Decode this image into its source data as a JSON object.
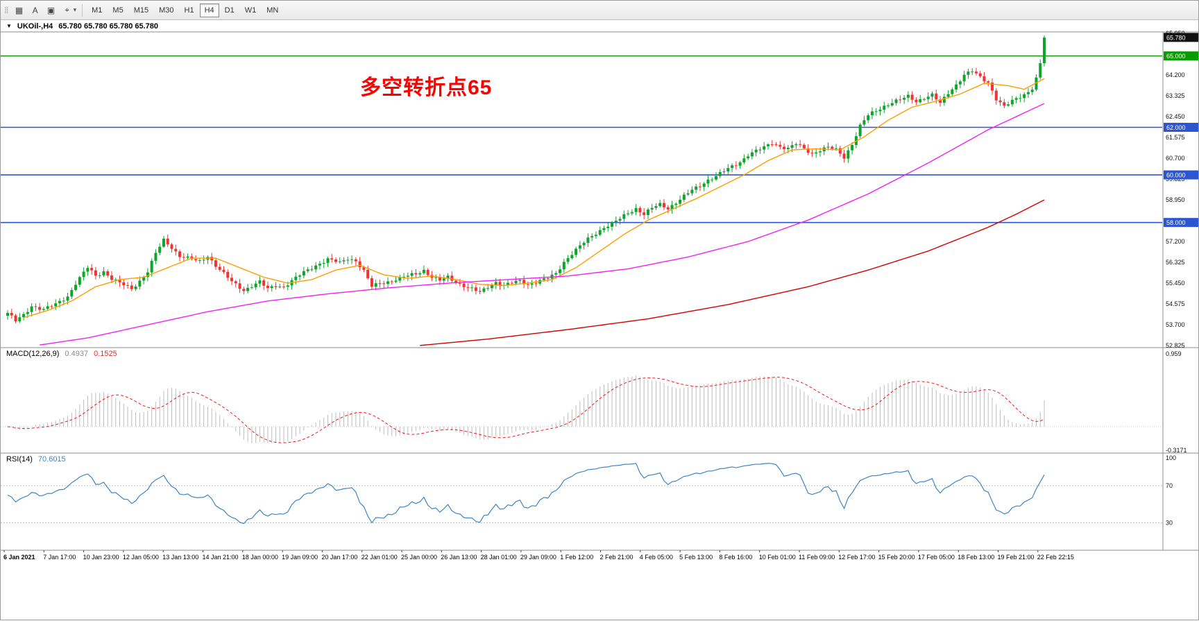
{
  "toolbar": {
    "icons": [
      {
        "name": "toolbar-drag-handle-icon",
        "glyph": "⣿"
      },
      {
        "name": "charts-grid-icon",
        "glyph": "▦"
      },
      {
        "name": "text-tool-icon",
        "glyph": "A"
      },
      {
        "name": "template-icon",
        "glyph": "▣"
      },
      {
        "name": "crosshair-tool-icon",
        "glyph": "⌖"
      },
      {
        "name": "dropdown-chevron-icon",
        "glyph": "▾"
      }
    ],
    "timeframes": [
      {
        "label": "M1",
        "active": false
      },
      {
        "label": "M5",
        "active": false
      },
      {
        "label": "M15",
        "active": false
      },
      {
        "label": "M30",
        "active": false
      },
      {
        "label": "H1",
        "active": false
      },
      {
        "label": "H4",
        "active": true
      },
      {
        "label": "D1",
        "active": false
      },
      {
        "label": "W1",
        "active": false
      },
      {
        "label": "MN",
        "active": false
      }
    ]
  },
  "chart_header": {
    "dropdown_glyph": "▼",
    "symbol": "UKOil-,H4",
    "ohlc": "65.780 65.780 65.780 65.780"
  },
  "annotation": {
    "text": "多空转折点65",
    "color": "#ff0000"
  },
  "macd": {
    "label": "MACD(12,26,9)",
    "main_value": "0.4937",
    "signal_value": "0.1525",
    "fast_period": 12,
    "slow_period": 26,
    "signal_period": 9,
    "scale_top": "0.959",
    "scale_bottom": "-0.3171",
    "histogram_color": "#bdbdbd",
    "signal_color": "#ff1414"
  },
  "rsi": {
    "label": "RSI(14)",
    "value": "70.6015",
    "period": 14,
    "levels": [
      "100",
      "70",
      "30"
    ],
    "level_values": [
      100,
      70,
      30
    ],
    "dotted_levels": [
      70,
      30
    ],
    "line_color": "#3d85c6"
  },
  "chart_data": {
    "type": "candlestick",
    "symbol": "UKOil-",
    "timeframe": "H4",
    "title": "UKOil-,H4 65.780 65.780 65.780 65.780",
    "current_price": "65.780",
    "bars_total": 260,
    "colors": {
      "up": "#0fa52c",
      "down": "#ef3434"
    },
    "y_axis": {
      "min": 52.74,
      "max": 66.01,
      "labels": [
        "65.950",
        "64.200",
        "63.325",
        "62.450",
        "61.575",
        "60.700",
        "59.825",
        "58.950",
        "57.200",
        "56.325",
        "55.450",
        "54.575",
        "53.700",
        "52.825"
      ]
    },
    "x_axis_labels": [
      "6 Jan 2021",
      "7 Jan 17:00",
      "10 Jan 23:00",
      "12 Jan 05:00",
      "13 Jan 13:00",
      "14 Jan 21:00",
      "18 Jan 00:00",
      "19 Jan 09:00",
      "20 Jan 17:00",
      "22 Jan 01:00",
      "25 Jan 00:00",
      "26 Jan 13:00",
      "28 Jan 01:00",
      "29 Jan 09:00",
      "1 Feb 12:00",
      "2 Feb 21:00",
      "4 Feb 05:00",
      "5 Feb 13:00",
      "8 Feb 16:00",
      "10 Feb 01:00",
      "11 Feb 09:00",
      "12 Feb 17:00",
      "15 Feb 20:00",
      "17 Feb 05:00",
      "18 Feb 13:00",
      "19 Feb 21:00",
      "22 Feb 22:15"
    ],
    "price_levels": [
      {
        "label": "65.000",
        "price": 65.0,
        "color": "#089b00",
        "type": "hline"
      },
      {
        "label": "62.000",
        "price": 62.0,
        "color": "#2d55cf",
        "type": "hline"
      },
      {
        "label": "60.000",
        "price": 60.0,
        "color": "#2d55cf",
        "type": "hline"
      },
      {
        "label": "58.000",
        "price": 58.0,
        "color": "#2d55cf",
        "type": "hline"
      }
    ],
    "price_waypoints": [
      [
        0,
        54.2
      ],
      [
        2,
        53.85
      ],
      [
        4,
        54.1
      ],
      [
        6,
        54.5
      ],
      [
        9,
        54.35
      ],
      [
        12,
        54.55
      ],
      [
        15,
        54.9
      ],
      [
        17,
        55.45
      ],
      [
        20,
        56.1
      ],
      [
        22,
        55.75
      ],
      [
        24,
        55.95
      ],
      [
        26,
        55.65
      ],
      [
        28,
        55.45
      ],
      [
        31,
        55.2
      ],
      [
        33,
        55.55
      ],
      [
        35,
        55.95
      ],
      [
        37,
        56.7
      ],
      [
        39,
        57.25
      ],
      [
        41,
        56.95
      ],
      [
        43,
        56.6
      ],
      [
        46,
        56.45
      ],
      [
        48,
        56.35
      ],
      [
        50,
        56.6
      ],
      [
        52,
        56.2
      ],
      [
        54,
        55.85
      ],
      [
        56,
        55.5
      ],
      [
        59,
        55.15
      ],
      [
        61,
        55.35
      ],
      [
        63,
        55.5
      ],
      [
        65,
        55.2
      ],
      [
        67,
        55.35
      ],
      [
        69,
        55.3
      ],
      [
        71,
        55.55
      ],
      [
        74,
        55.9
      ],
      [
        77,
        56.2
      ],
      [
        80,
        56.45
      ],
      [
        83,
        56.3
      ],
      [
        85,
        56.5
      ],
      [
        87,
        56.4
      ],
      [
        89,
        55.95
      ],
      [
        91,
        55.3
      ],
      [
        93,
        55.45
      ],
      [
        96,
        55.55
      ],
      [
        99,
        55.7
      ],
      [
        102,
        55.85
      ],
      [
        104,
        56.0
      ],
      [
        106,
        55.7
      ],
      [
        108,
        55.55
      ],
      [
        110,
        55.7
      ],
      [
        112,
        55.5
      ],
      [
        114,
        55.35
      ],
      [
        116,
        55.2
      ],
      [
        118,
        55.05
      ],
      [
        120,
        55.3
      ],
      [
        122,
        55.5
      ],
      [
        124,
        55.35
      ],
      [
        126,
        55.45
      ],
      [
        128,
        55.55
      ],
      [
        130,
        55.4
      ],
      [
        132,
        55.5
      ],
      [
        135,
        55.65
      ],
      [
        137,
        55.85
      ],
      [
        139,
        56.35
      ],
      [
        141,
        56.7
      ],
      [
        143,
        57.0
      ],
      [
        145,
        57.3
      ],
      [
        147,
        57.55
      ],
      [
        149,
        57.8
      ],
      [
        151,
        57.95
      ],
      [
        153,
        58.15
      ],
      [
        155,
        58.4
      ],
      [
        157,
        58.6
      ],
      [
        159,
        58.35
      ],
      [
        161,
        58.6
      ],
      [
        163,
        58.75
      ],
      [
        165,
        58.6
      ],
      [
        167,
        58.85
      ],
      [
        169,
        59.1
      ],
      [
        171,
        59.35
      ],
      [
        173,
        59.55
      ],
      [
        175,
        59.8
      ],
      [
        177,
        59.95
      ],
      [
        179,
        60.15
      ],
      [
        181,
        60.35
      ],
      [
        183,
        60.55
      ],
      [
        185,
        60.85
      ],
      [
        187,
        61.0
      ],
      [
        189,
        61.15
      ],
      [
        191,
        61.35
      ],
      [
        193,
        61.2
      ],
      [
        195,
        61.1
      ],
      [
        197,
        61.3
      ],
      [
        199,
        61.1
      ],
      [
        201,
        60.9
      ],
      [
        203,
        61.05
      ],
      [
        205,
        61.15
      ],
      [
        207,
        61.05
      ],
      [
        209,
        60.75
      ],
      [
        211,
        61.3
      ],
      [
        213,
        62.05
      ],
      [
        215,
        62.5
      ],
      [
        217,
        62.7
      ],
      [
        219,
        62.9
      ],
      [
        221,
        63.05
      ],
      [
        223,
        63.15
      ],
      [
        225,
        63.3
      ],
      [
        227,
        63.1
      ],
      [
        229,
        63.25
      ],
      [
        231,
        63.35
      ],
      [
        233,
        63.0
      ],
      [
        235,
        63.45
      ],
      [
        237,
        63.8
      ],
      [
        239,
        64.2
      ],
      [
        241,
        64.35
      ],
      [
        243,
        64.1
      ],
      [
        245,
        63.9
      ],
      [
        247,
        63.2
      ],
      [
        249,
        62.85
      ],
      [
        251,
        63.1
      ],
      [
        253,
        63.3
      ],
      [
        255,
        63.5
      ],
      [
        256,
        63.65
      ],
      [
        257,
        64.05
      ],
      [
        258,
        64.65
      ],
      [
        259,
        65.78
      ]
    ],
    "moving_averages": [
      {
        "name": "ma-fast",
        "color": "#ff9d00",
        "points": [
          [
            4,
            54.0
          ],
          [
            10,
            54.3
          ],
          [
            16,
            54.7
          ],
          [
            22,
            55.3
          ],
          [
            28,
            55.6
          ],
          [
            34,
            55.7
          ],
          [
            40,
            56.1
          ],
          [
            46,
            56.5
          ],
          [
            52,
            56.5
          ],
          [
            58,
            56.1
          ],
          [
            64,
            55.7
          ],
          [
            70,
            55.45
          ],
          [
            76,
            55.6
          ],
          [
            82,
            56.0
          ],
          [
            88,
            56.2
          ],
          [
            94,
            55.8
          ],
          [
            100,
            55.65
          ],
          [
            106,
            55.75
          ],
          [
            112,
            55.6
          ],
          [
            118,
            55.4
          ],
          [
            124,
            55.35
          ],
          [
            130,
            55.45
          ],
          [
            136,
            55.6
          ],
          [
            142,
            56.1
          ],
          [
            148,
            56.8
          ],
          [
            154,
            57.5
          ],
          [
            160,
            58.1
          ],
          [
            166,
            58.55
          ],
          [
            172,
            59.0
          ],
          [
            178,
            59.5
          ],
          [
            184,
            60.0
          ],
          [
            190,
            60.6
          ],
          [
            196,
            61.05
          ],
          [
            202,
            61.1
          ],
          [
            208,
            61.05
          ],
          [
            214,
            61.6
          ],
          [
            220,
            62.3
          ],
          [
            226,
            62.85
          ],
          [
            232,
            63.1
          ],
          [
            238,
            63.4
          ],
          [
            244,
            63.85
          ],
          [
            250,
            63.75
          ],
          [
            254,
            63.6
          ],
          [
            259,
            64.05
          ]
        ]
      },
      {
        "name": "ma-mid",
        "color": "#f321f3",
        "points": [
          [
            8,
            52.85
          ],
          [
            20,
            53.15
          ],
          [
            35,
            53.7
          ],
          [
            50,
            54.25
          ],
          [
            65,
            54.7
          ],
          [
            80,
            55.0
          ],
          [
            95,
            55.25
          ],
          [
            110,
            55.45
          ],
          [
            125,
            55.6
          ],
          [
            140,
            55.75
          ],
          [
            155,
            56.05
          ],
          [
            170,
            56.55
          ],
          [
            185,
            57.2
          ],
          [
            200,
            58.1
          ],
          [
            215,
            59.2
          ],
          [
            230,
            60.5
          ],
          [
            245,
            61.9
          ],
          [
            259,
            63.0
          ]
        ]
      },
      {
        "name": "ma-slow",
        "color": "#d40000",
        "points": [
          [
            103,
            52.83
          ],
          [
            120,
            53.1
          ],
          [
            140,
            53.5
          ],
          [
            160,
            53.95
          ],
          [
            180,
            54.55
          ],
          [
            200,
            55.3
          ],
          [
            215,
            56.0
          ],
          [
            230,
            56.8
          ],
          [
            245,
            57.8
          ],
          [
            252,
            58.35
          ],
          [
            259,
            58.95
          ]
        ]
      }
    ]
  }
}
